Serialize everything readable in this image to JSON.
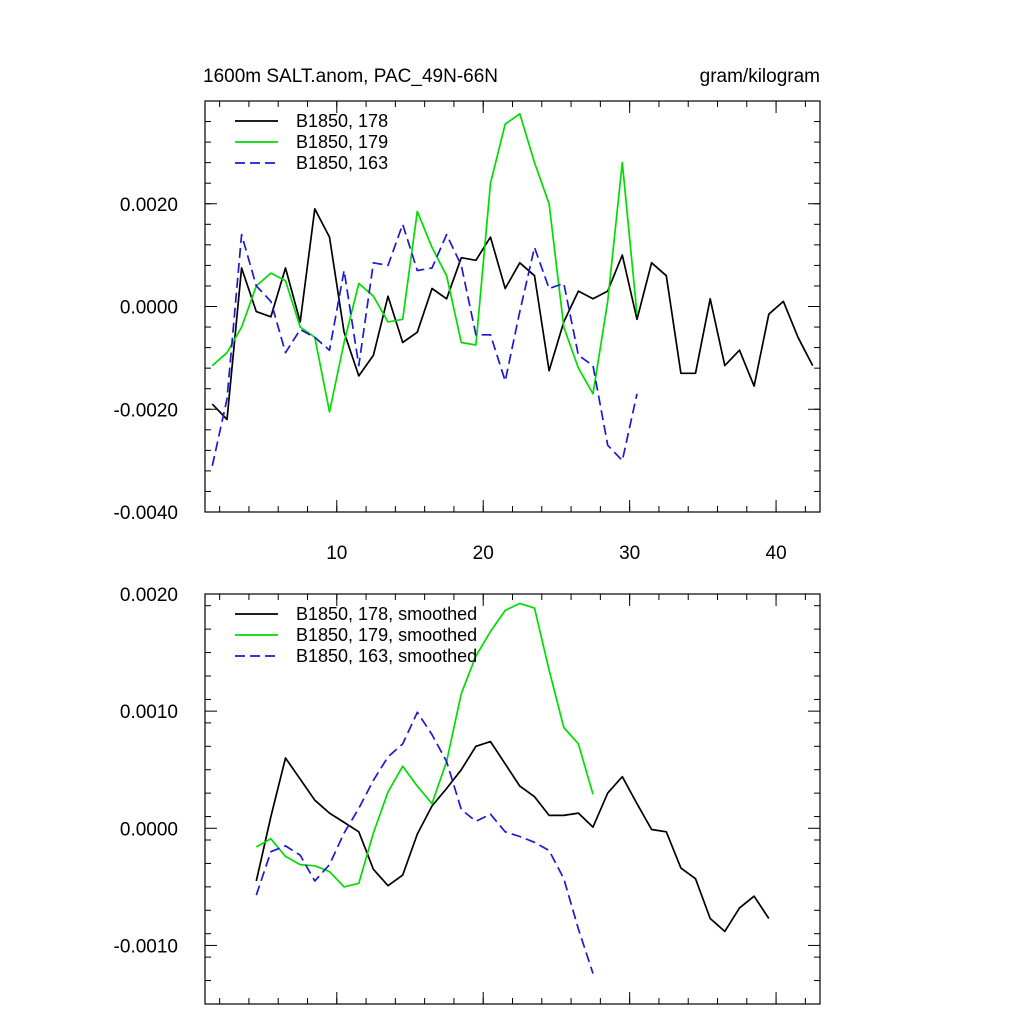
{
  "chart_data": [
    {
      "type": "line",
      "title": "1600m SALT.anom, PAC_49N-66N",
      "units": "gram/kilogram",
      "xlim": [
        1,
        43
      ],
      "ylim": [
        -0.004,
        0.004
      ],
      "x_ticks": [
        10,
        20,
        30,
        40
      ],
      "x_tick_labels": [
        "10",
        "20",
        "30",
        "40"
      ],
      "y_ticks": [
        -0.004,
        -0.002,
        0.0,
        0.002
      ],
      "y_tick_labels": [
        "-0.0040",
        "-0.0020",
        "0.0000",
        "0.0020"
      ],
      "legend_position": "top-left",
      "series": [
        {
          "name": "B1850, 178",
          "color": "#000000",
          "dash": "solid",
          "x": [
            1.5,
            2.5,
            3.5,
            4.5,
            5.5,
            6.5,
            7.5,
            8.5,
            9.5,
            10.5,
            11.5,
            12.5,
            13.5,
            14.5,
            15.5,
            16.5,
            17.5,
            18.5,
            19.5,
            20.5,
            21.5,
            22.5,
            23.5,
            24.5,
            25.5,
            26.5,
            27.5,
            28.5,
            29.5,
            30.5,
            31.5,
            32.5,
            33.5,
            34.5,
            35.5,
            36.5,
            37.5,
            38.5,
            39.5,
            40.5,
            41.5,
            42.5
          ],
          "values": [
            -0.0019,
            -0.0022,
            0.00075,
            -0.0001,
            -0.0002,
            0.00075,
            -0.0003,
            0.0019,
            0.00135,
            -0.0005,
            -0.00135,
            -0.00095,
            0.0002,
            -0.0007,
            -0.0005,
            0.00035,
            0.00015,
            0.00095,
            0.0009,
            0.00135,
            0.00035,
            0.00085,
            0.0006,
            -0.00125,
            -0.0003,
            0.0003,
            0.00015,
            0.0003,
            0.001,
            -0.00025,
            0.00085,
            0.0006,
            -0.0013,
            -0.0013,
            0.00015,
            -0.00115,
            -0.00085,
            -0.00155,
            -0.00015,
            0.0001,
            -0.0006,
            -0.00115
          ]
        },
        {
          "name": "B1850, 179",
          "color": "#00dd00",
          "dash": "solid",
          "x": [
            1.5,
            2.5,
            3.5,
            4.5,
            5.5,
            6.5,
            7.5,
            8.5,
            9.5,
            10.5,
            11.5,
            12.5,
            13.5,
            14.5,
            15.5,
            16.5,
            17.5,
            18.5,
            19.5,
            20.5,
            21.5,
            22.5,
            23.5,
            24.5,
            25.5,
            26.5,
            27.5,
            28.5,
            29.5,
            30.5
          ],
          "values": [
            -0.00115,
            -0.0009,
            -0.0004,
            0.0004,
            0.00065,
            0.0005,
            -0.0004,
            -0.0006,
            -0.00205,
            -0.0007,
            0.00045,
            0.0002,
            -0.0003,
            -0.00025,
            0.00185,
            0.00115,
            0.0006,
            -0.0007,
            -0.00075,
            0.0024,
            0.00355,
            0.00375,
            0.0028,
            0.002,
            -0.0004,
            -0.0012,
            -0.0017,
            0.0001,
            0.0028,
            -0.00015
          ]
        },
        {
          "name": "B1850, 163",
          "color": "#1a1ad6",
          "dash": "dashed",
          "x": [
            1.5,
            2.5,
            3.5,
            4.5,
            5.5,
            6.5,
            7.5,
            8.5,
            9.5,
            10.5,
            11.5,
            12.5,
            13.5,
            14.5,
            15.5,
            16.5,
            17.5,
            18.5,
            19.5,
            20.5,
            21.5,
            22.5,
            23.5,
            24.5,
            25.5,
            26.5,
            27.5,
            28.5,
            29.5,
            30.5
          ],
          "values": [
            -0.0031,
            -0.0018,
            0.0014,
            0.0004,
            0.0001,
            -0.0009,
            -0.00045,
            -0.0006,
            -0.00085,
            0.0007,
            -0.00115,
            0.00085,
            0.0008,
            0.0016,
            0.0007,
            0.00075,
            0.0014,
            0.0008,
            -0.00055,
            -0.00055,
            -0.00145,
            -0.0001,
            0.00115,
            0.00035,
            0.00045,
            -0.00095,
            -0.00115,
            -0.0027,
            -0.003,
            -0.0017
          ]
        }
      ]
    },
    {
      "type": "line",
      "xlim": [
        1,
        43
      ],
      "ylim": [
        -0.0015,
        0.002
      ],
      "x_ticks": [
        10,
        20,
        30,
        40
      ],
      "y_ticks": [
        -0.001,
        0.0,
        0.001,
        0.002
      ],
      "y_tick_labels": [
        "-0.0010",
        "0.0000",
        "0.0010",
        "0.0020"
      ],
      "legend_position": "top-left",
      "series": [
        {
          "name": "B1850, 178, smoothed",
          "color": "#000000",
          "dash": "solid",
          "x": [
            4.5,
            5.5,
            6.5,
            7.5,
            8.5,
            9.5,
            10.5,
            11.5,
            12.5,
            13.5,
            14.5,
            15.5,
            16.5,
            17.5,
            18.5,
            19.5,
            20.5,
            21.5,
            22.5,
            23.5,
            24.5,
            25.5,
            26.5,
            27.5,
            28.5,
            29.5,
            30.5,
            31.5,
            32.5,
            33.5,
            34.5,
            35.5,
            36.5,
            37.5,
            38.5,
            39.5
          ],
          "values": [
            -0.00045,
            0.0001,
            0.0006,
            0.00042,
            0.00024,
            0.00013,
            5e-05,
            -3e-05,
            -0.00035,
            -0.00049,
            -0.0004,
            -5e-05,
            0.00019,
            0.00034,
            0.0005,
            0.0007,
            0.00074,
            0.00055,
            0.00036,
            0.00027,
            0.00011,
            0.00011,
            0.00013,
            1e-05,
            0.0003,
            0.00044,
            0.00021,
            -1e-05,
            -3e-05,
            -0.00034,
            -0.00043,
            -0.00077,
            -0.00088,
            -0.00068,
            -0.00058,
            -0.00077
          ]
        },
        {
          "name": "B1850, 179, smoothed",
          "color": "#00dd00",
          "dash": "solid",
          "x": [
            4.5,
            5.5,
            6.5,
            7.5,
            8.5,
            9.5,
            10.5,
            11.5,
            12.5,
            13.5,
            14.5,
            15.5,
            16.5,
            17.5,
            18.5,
            19.5,
            20.5,
            21.5,
            22.5,
            23.5,
            24.5,
            25.5,
            26.5,
            27.5
          ],
          "values": [
            -0.00016,
            -9e-05,
            -0.00024,
            -0.00031,
            -0.00032,
            -0.00037,
            -0.0005,
            -0.00047,
            -4e-05,
            0.00031,
            0.00053,
            0.00036,
            0.00021,
            0.00057,
            0.00115,
            0.00147,
            0.00168,
            0.00186,
            0.00192,
            0.00188,
            0.00135,
            0.00086,
            0.00072,
            0.00029
          ]
        },
        {
          "name": "B1850, 163, smoothed",
          "color": "#1a1ad6",
          "dash": "dashed",
          "x": [
            4.5,
            5.5,
            6.5,
            7.5,
            8.5,
            9.5,
            10.5,
            11.5,
            12.5,
            13.5,
            14.5,
            15.5,
            16.5,
            17.5,
            18.5,
            19.5,
            20.5,
            21.5,
            22.5,
            23.5,
            24.5,
            25.5,
            26.5,
            27.5
          ],
          "values": [
            -0.00057,
            -0.0002,
            -0.00015,
            -0.00023,
            -0.00045,
            -0.00031,
            -4e-05,
            0.00017,
            0.00041,
            0.00061,
            0.00072,
            0.00099,
            0.0008,
            0.00057,
            0.00016,
            6e-05,
            0.00012,
            -3e-05,
            -7e-05,
            -0.00012,
            -0.00019,
            -0.00043,
            -0.00086,
            -0.00124
          ]
        }
      ]
    }
  ]
}
